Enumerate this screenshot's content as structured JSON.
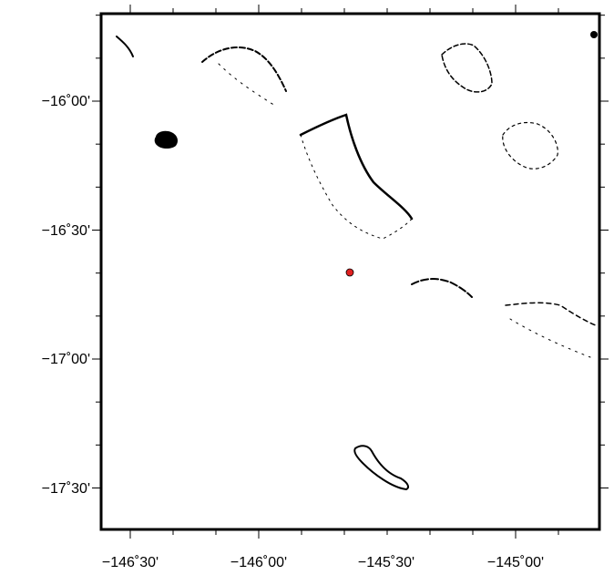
{
  "map": {
    "x_tick_labels": [
      "−146˚30'",
      "−146˚00'",
      "−145˚30'",
      "−145˚00'"
    ],
    "y_tick_labels": [
      "−16˚00'",
      "−16˚30'",
      "−17˚00'",
      "−17˚30'"
    ],
    "x_ticks_deg": [
      -146.5,
      -146.0,
      -145.5,
      -145.0
    ],
    "y_ticks_deg": [
      -16.0,
      -16.5,
      -17.0,
      -17.5
    ],
    "lon_range": [
      -146.6,
      -144.72
    ],
    "lat_range": [
      -15.8,
      -17.95
    ],
    "marker": {
      "lon": -145.62,
      "lat": -16.67,
      "color": "#e02020"
    },
    "land_color": "#000000",
    "frame_color": "#000000"
  }
}
